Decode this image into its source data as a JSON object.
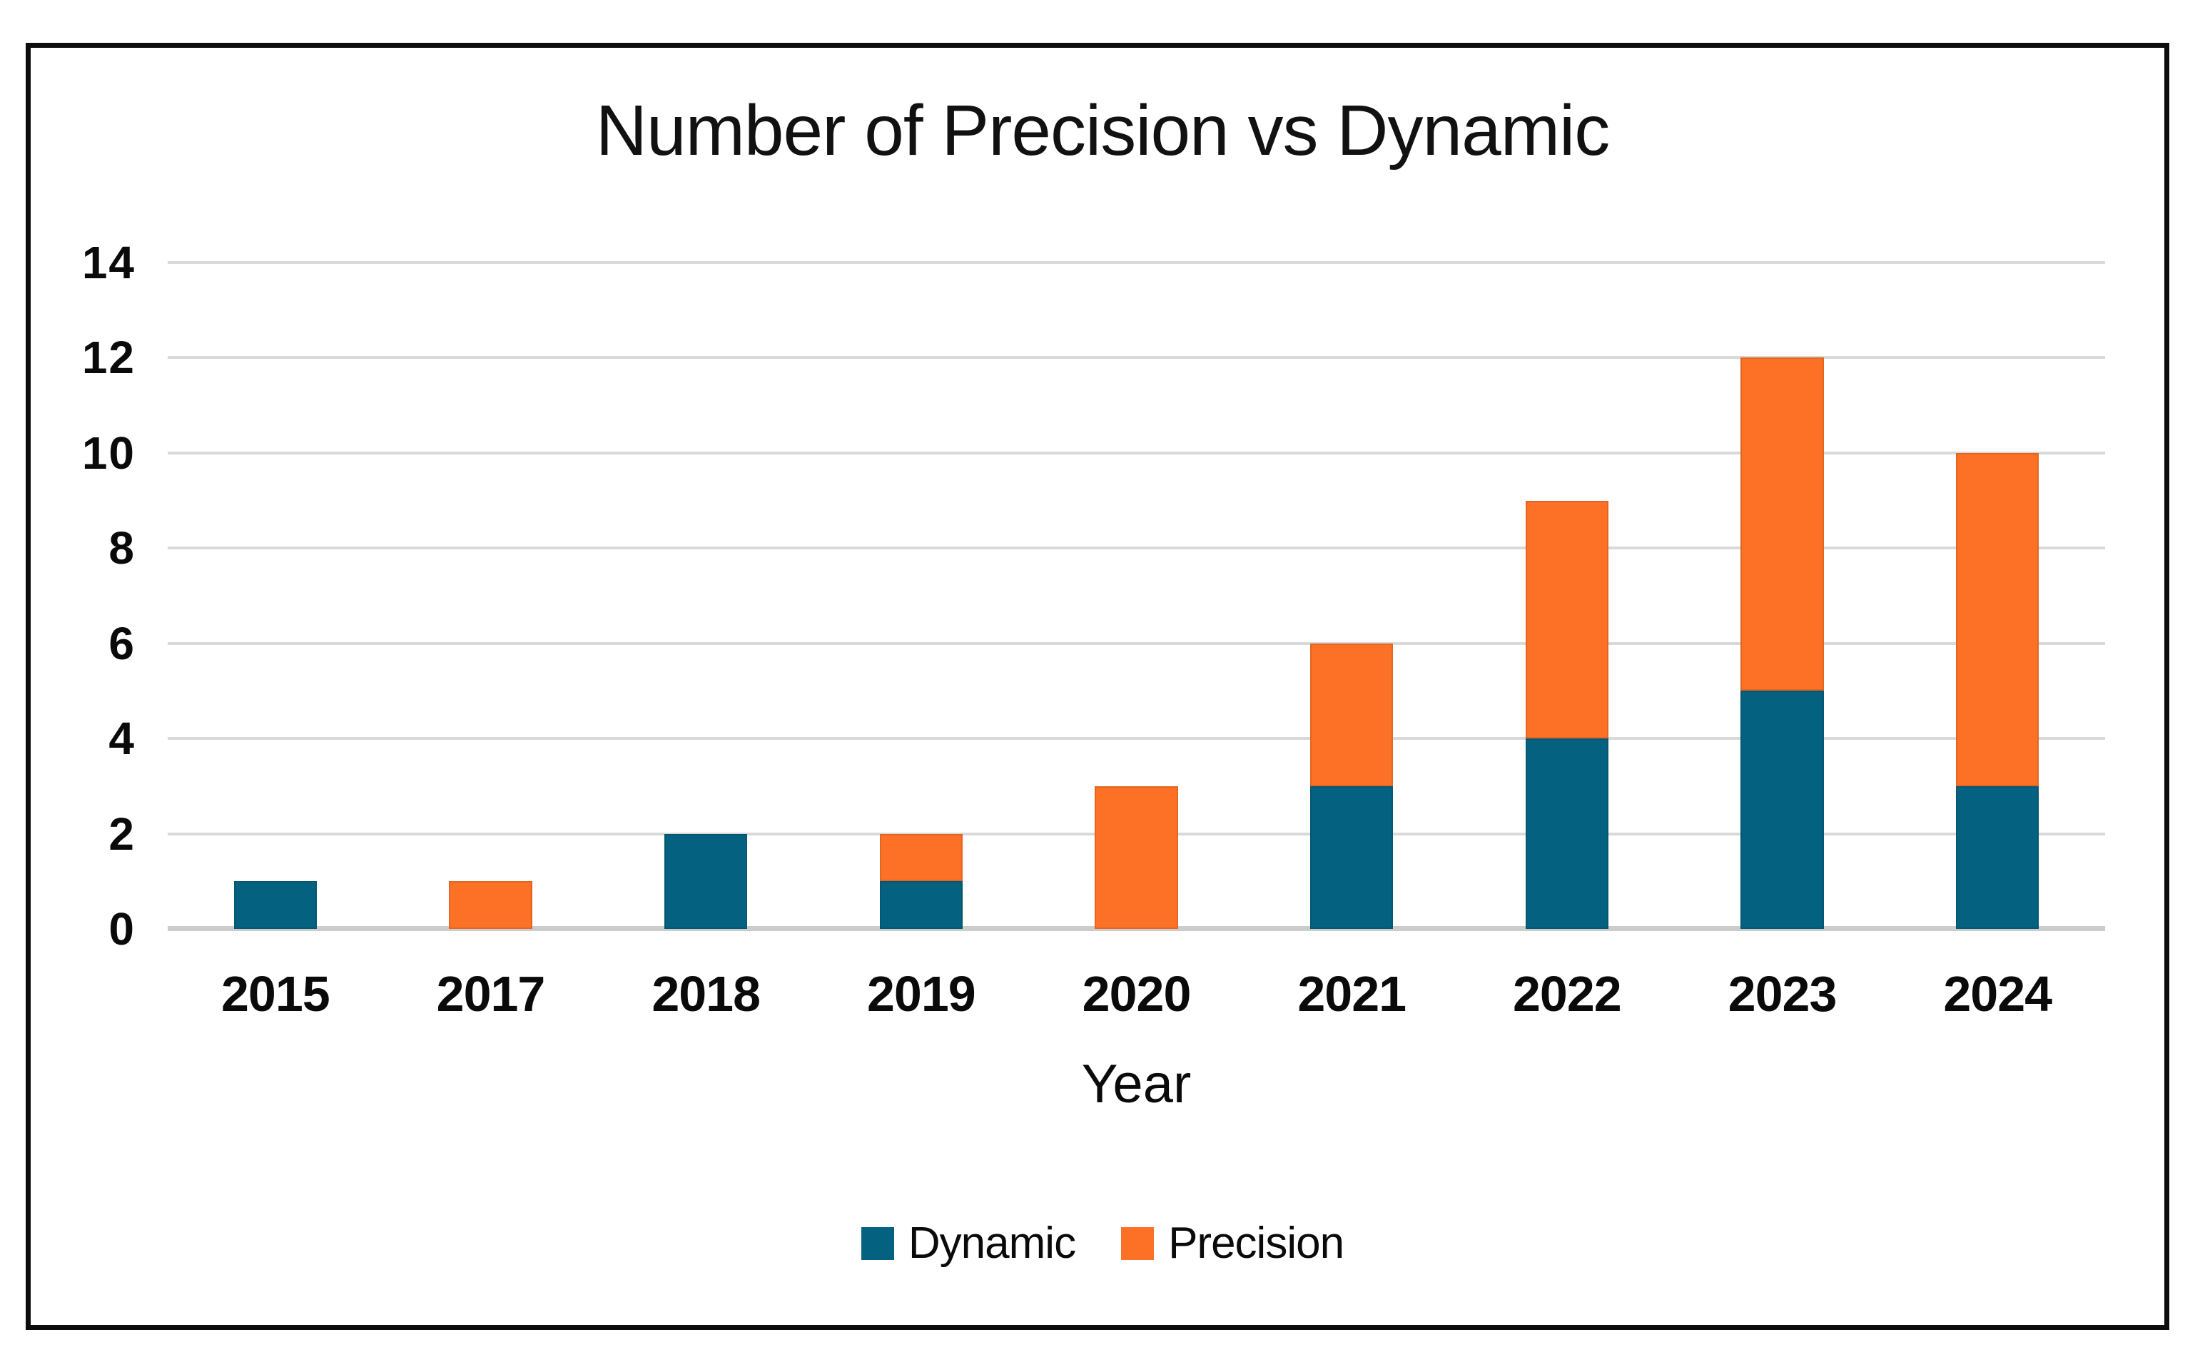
{
  "page": {
    "background": "#ffffff",
    "frame_border_color": "#0d0d0d"
  },
  "chart_data": {
    "type": "bar",
    "stacked": true,
    "title": "Number of Precision vs Dynamic",
    "xlabel": "Year",
    "ylabel": "",
    "categories": [
      "2015",
      "2017",
      "2018",
      "2019",
      "2020",
      "2021",
      "2022",
      "2023",
      "2024"
    ],
    "series": [
      {
        "name": "Dynamic",
        "color": "#056180",
        "values": [
          1,
          0,
          2,
          1,
          0,
          3,
          4,
          5,
          3
        ]
      },
      {
        "name": "Precision",
        "color": "#FD7126",
        "values": [
          0,
          1,
          0,
          1,
          3,
          3,
          5,
          7,
          7
        ]
      }
    ],
    "totals": [
      1,
      1,
      2,
      2,
      3,
      6,
      9,
      12,
      10
    ],
    "ylim": [
      0,
      14
    ],
    "yticks": [
      0,
      2,
      4,
      6,
      8,
      10,
      12,
      14
    ],
    "grid": true,
    "gridline_color": "#d9d9d9",
    "baseline_color": "#cccccc",
    "legend_position": "bottom",
    "legend_entries": [
      "Dynamic",
      "Precision"
    ]
  }
}
